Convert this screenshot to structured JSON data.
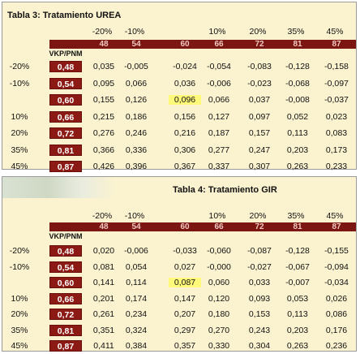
{
  "tables": [
    {
      "title": "Tabla 3: Tratamiento UREA",
      "col_pct": [
        "-20%",
        "-10%",
        "",
        "10%",
        "20%",
        "35%",
        "45%"
      ],
      "col_vals": [
        "48",
        "54",
        "60",
        "66",
        "72",
        "81",
        "87"
      ],
      "corner_label": "VKP/PNM",
      "rows": [
        {
          "label": "-20%",
          "box": "0,48",
          "cells": [
            "0,035",
            "-0,005",
            "-0,024",
            "-0,054",
            "-0,083",
            "-0,128",
            "-0,158"
          ]
        },
        {
          "label": "-10%",
          "box": "0,54",
          "cells": [
            "0,095",
            "0,066",
            "0,036",
            "-0,006",
            "-0,023",
            "-0,068",
            "-0,097"
          ]
        },
        {
          "label": "",
          "box": "0,60",
          "cells": [
            "0,155",
            "0,126",
            "0,096",
            "0,066",
            "0,037",
            "-0,008",
            "-0,037"
          ]
        },
        {
          "label": "10%",
          "box": "0,66",
          "cells": [
            "0,215",
            "0,186",
            "0,156",
            "0,127",
            "0,097",
            "0,052",
            "0,023"
          ]
        },
        {
          "label": "20%",
          "box": "0,72",
          "cells": [
            "0,276",
            "0,246",
            "0,216",
            "0,187",
            "0,157",
            "0,113",
            "0,083"
          ]
        },
        {
          "label": "35%",
          "box": "0,81",
          "cells": [
            "0,366",
            "0,336",
            "0,306",
            "0,277",
            "0,247",
            "0,203",
            "0,173"
          ]
        },
        {
          "label": "45%",
          "box": "0,87",
          "cells": [
            "0,426",
            "0,396",
            "0,367",
            "0,337",
            "0,307",
            "0,263",
            "0,233"
          ]
        }
      ]
    },
    {
      "title": "Tabla 4: Tratamiento GIR",
      "col_pct": [
        "-20%",
        "-10%",
        "",
        "10%",
        "20%",
        "35%",
        "45%"
      ],
      "col_vals": [
        "48",
        "54",
        "60",
        "66",
        "72",
        "81",
        "87"
      ],
      "corner_label": "VKP/PNM",
      "rows": [
        {
          "label": "-20%",
          "box": "0,48",
          "cells": [
            "0,020",
            "-0,006",
            "-0,033",
            "-0,060",
            "-0,087",
            "-0,128",
            "-0,155"
          ]
        },
        {
          "label": "-10%",
          "box": "0,54",
          "cells": [
            "0,081",
            "0,054",
            "0,027",
            "-0,000",
            "-0,027",
            "-0,067",
            "-0,094"
          ]
        },
        {
          "label": "",
          "box": "0,60",
          "cells": [
            "0,141",
            "0,114",
            "0,087",
            "0,060",
            "0,033",
            "-0,007",
            "-0,034"
          ]
        },
        {
          "label": "10%",
          "box": "0,66",
          "cells": [
            "0,201",
            "0,174",
            "0,147",
            "0,120",
            "0,093",
            "0,053",
            "0,026"
          ]
        },
        {
          "label": "20%",
          "box": "0,72",
          "cells": [
            "0,261",
            "0,234",
            "0,207",
            "0,180",
            "0,153",
            "0,113",
            "0,086"
          ]
        },
        {
          "label": "35%",
          "box": "0,81",
          "cells": [
            "0,351",
            "0,324",
            "0,297",
            "0,270",
            "0,243",
            "0,203",
            "0,176"
          ]
        },
        {
          "label": "45%",
          "box": "0,87",
          "cells": [
            "0,411",
            "0,384",
            "0,357",
            "0,330",
            "0,304",
            "0,263",
            "0,236"
          ]
        }
      ]
    }
  ],
  "colors": {
    "panel_bg": "#fbf3cf",
    "header_red": "#7b1612",
    "box_red": "#8c1a14",
    "highlight": "#fff97a"
  }
}
